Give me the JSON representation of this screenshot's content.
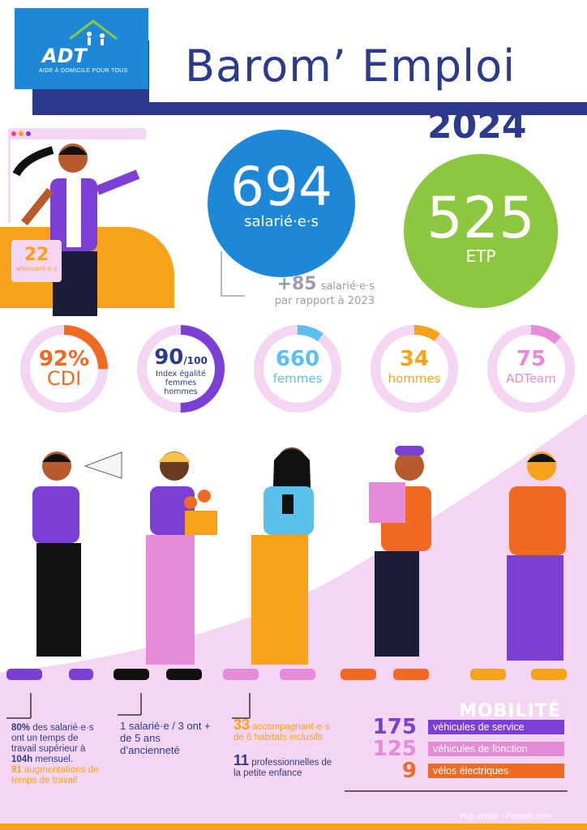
{
  "logo": {
    "brand": "ADT",
    "tagline": "AIDE À DOMICILE POUR TOUS"
  },
  "header": {
    "title": "Barom’ Emploi",
    "year": "2024"
  },
  "left_badge": {
    "value": "22",
    "label": "alternant·e·s"
  },
  "employees": {
    "value": "694",
    "label": "salarié·e·s",
    "delta": "+85",
    "delta_label_1": "salarié·e·s",
    "delta_label_2": "par rapport à 2023"
  },
  "fte": {
    "value": "525",
    "label": "ETP"
  },
  "donuts": [
    {
      "value": "92%",
      "label": "CDI",
      "color": "#f26a21",
      "fill": 0.25
    },
    {
      "value": "90",
      "suffix": "/100",
      "label": "Index égalité femmes hommes",
      "color": "#7b3fd6",
      "fill": 0.5
    },
    {
      "value": "660",
      "label": "femmes",
      "color": "#5bc0eb",
      "fill": 0.1
    },
    {
      "value": "34",
      "label": "hommes",
      "color": "#f6a31b",
      "fill": 0.1
    },
    {
      "value": "75",
      "label": "ADTeam",
      "color": "#e58bd8",
      "fill": 0.12
    }
  ],
  "stats": {
    "work_time": {
      "pct": "80%",
      "text_1": "des salarié·e·s ont un temps de travail supérieur à",
      "hours": "104h",
      "text_2": "mensuel.",
      "num": "91",
      "text_3": "augmentations de temps de travail"
    },
    "seniority": {
      "text": "1 salarié·e / 3 ont + de 5 ans d’ancienneté"
    },
    "housing": {
      "num": "33",
      "text": "accompagnant·e·s de 6 habitats inclusifs"
    },
    "childhood": {
      "num": "11",
      "text": "professionnelles de la petite enfance"
    }
  },
  "mobility": {
    "title": "MOBILITÉ",
    "rows": [
      {
        "value": "175",
        "label": "véhicules de service",
        "color": "#7b3fd6"
      },
      {
        "value": "125",
        "label": "véhicules de fonction",
        "color": "#e58bd8"
      },
      {
        "value": "9",
        "label": "vélos électriques",
        "color": "#f26a21"
      }
    ]
  },
  "credit": "Pch.vector - Freepik.com"
}
